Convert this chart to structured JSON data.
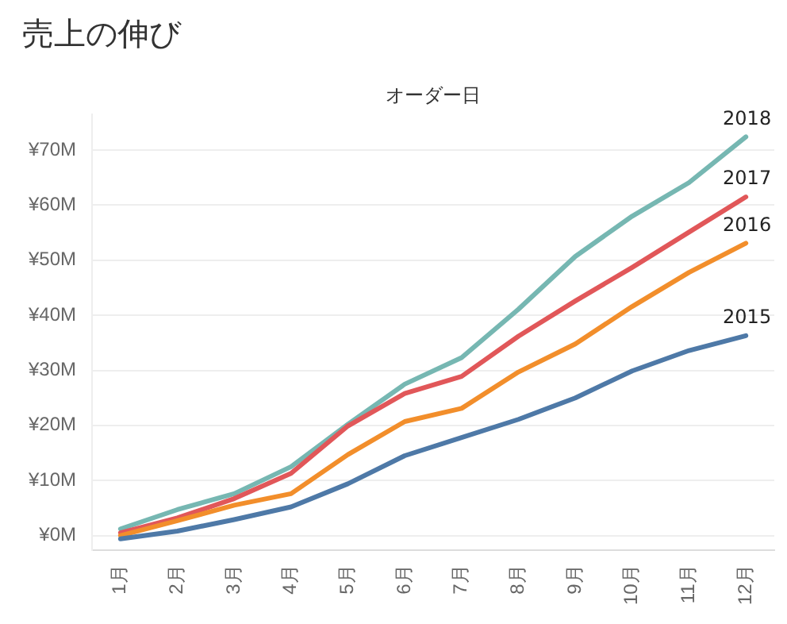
{
  "chart_data": {
    "type": "line",
    "title": "売上の伸び",
    "xlabel": "オーダー日",
    "categories": [
      "1月",
      "2月",
      "3月",
      "4月",
      "5月",
      "6月",
      "7月",
      "8月",
      "9月",
      "10月",
      "11月",
      "12月"
    ],
    "series": [
      {
        "name": "2015",
        "color": "#4e79a7",
        "values": [
          -0.6,
          0.8,
          2.9,
          5.2,
          9.4,
          14.5,
          17.8,
          21.1,
          25.0,
          29.9,
          33.6,
          36.3
        ]
      },
      {
        "name": "2016",
        "color": "#f28e2b",
        "values": [
          0,
          2.7,
          5.5,
          7.6,
          14.7,
          20.7,
          23.1,
          29.7,
          34.8,
          41.6,
          47.8,
          53.1
        ]
      },
      {
        "name": "2017",
        "color": "#e15759",
        "values": [
          0.5,
          3.2,
          6.7,
          11.3,
          19.9,
          25.8,
          28.9,
          36.2,
          42.6,
          48.7,
          55.1,
          61.5
        ]
      },
      {
        "name": "2018",
        "color": "#76b7b2",
        "values": [
          1.2,
          4.7,
          7.6,
          12.5,
          20.2,
          27.5,
          32.3,
          41.1,
          50.7,
          58.0,
          64.1,
          72.4
        ]
      }
    ],
    "ylim": [
      -2.7,
      76.5
    ],
    "yticks": [
      {
        "value": 0,
        "label": "¥0M"
      },
      {
        "value": 10,
        "label": "¥10M"
      },
      {
        "value": 20,
        "label": "¥20M"
      },
      {
        "value": 30,
        "label": "¥30M"
      },
      {
        "value": 40,
        "label": "¥40M"
      },
      {
        "value": 50,
        "label": "¥50M"
      },
      {
        "value": 60,
        "label": "¥60M"
      },
      {
        "value": 70,
        "label": "¥70M"
      }
    ],
    "grid": "y",
    "legend": false,
    "marker": "none",
    "line_style": "solid"
  }
}
